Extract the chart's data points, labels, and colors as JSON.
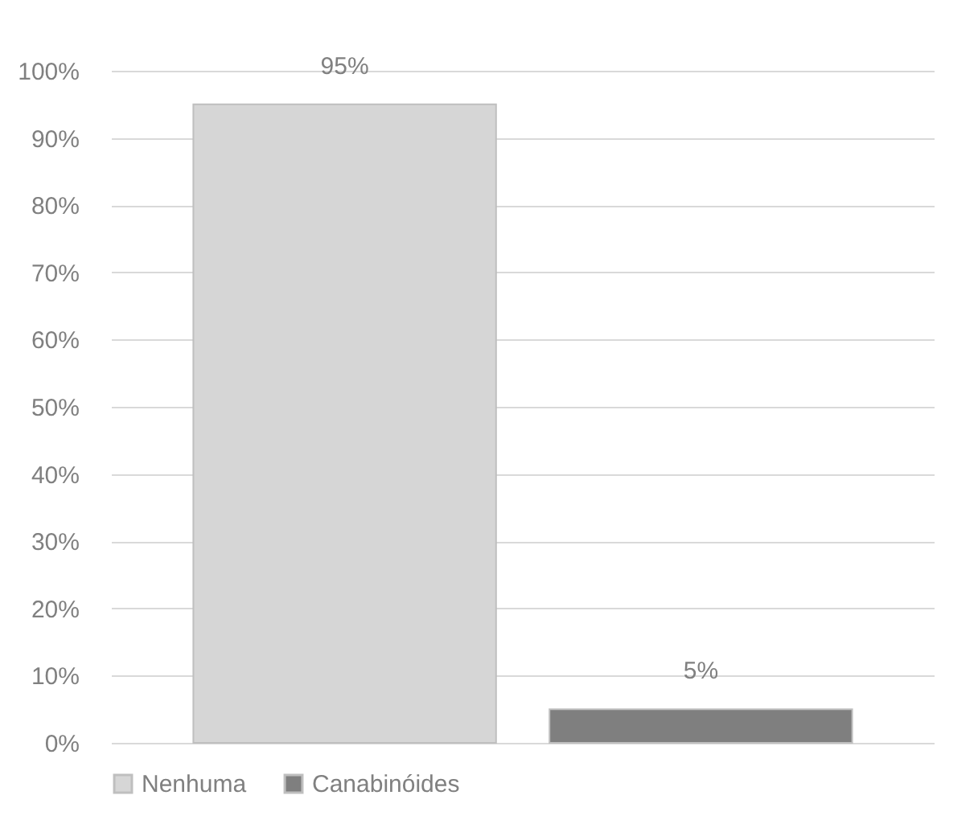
{
  "chart_data": {
    "type": "bar",
    "categories": [
      null
    ],
    "series": [
      {
        "name": "Nenhuma",
        "color": "#d6d6d6",
        "values": [
          95
        ],
        "value_labels": [
          "95%"
        ]
      },
      {
        "name": "Canabinóides",
        "color": "#7f7f7f",
        "values": [
          5
        ],
        "value_labels": [
          "5%"
        ]
      }
    ],
    "ylim": [
      0,
      100
    ],
    "yticks": [
      {
        "value": 0,
        "label": "0%"
      },
      {
        "value": 10,
        "label": "10%"
      },
      {
        "value": 20,
        "label": "20%"
      },
      {
        "value": 30,
        "label": "30%"
      },
      {
        "value": 40,
        "label": "40%"
      },
      {
        "value": 50,
        "label": "50%"
      },
      {
        "value": 60,
        "label": "60%"
      },
      {
        "value": 70,
        "label": "70%"
      },
      {
        "value": 80,
        "label": "80%"
      },
      {
        "value": 90,
        "label": "90%"
      },
      {
        "value": 100,
        "label": "100%"
      }
    ],
    "grid": "y",
    "legend": "bottom"
  }
}
